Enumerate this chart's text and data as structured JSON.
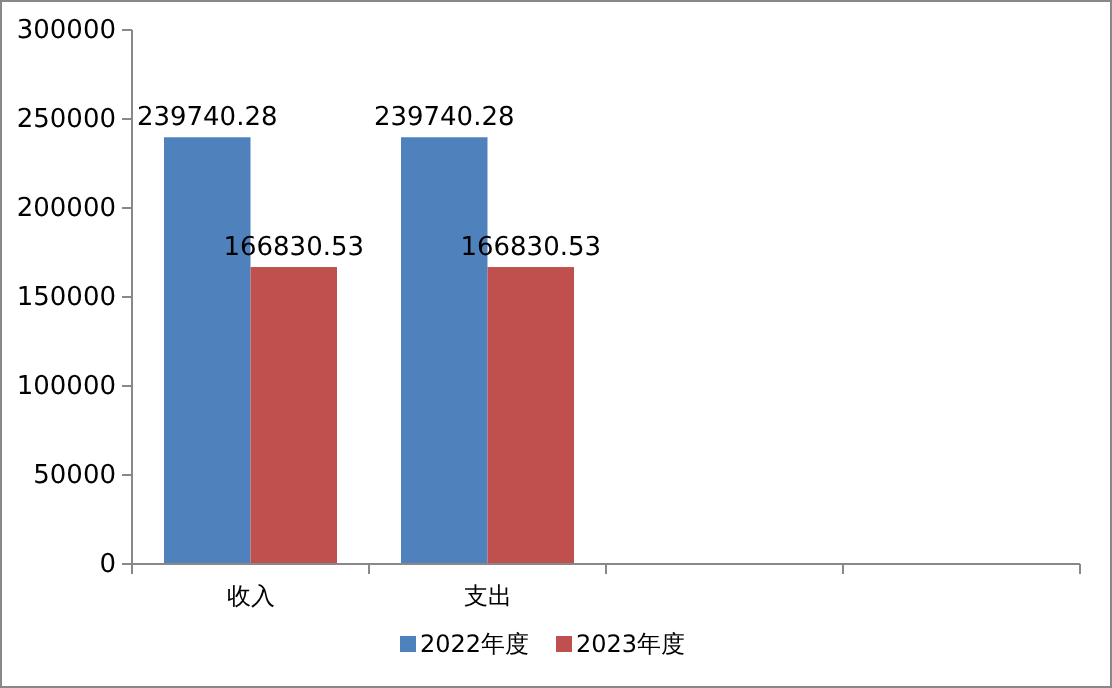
{
  "chart_data": {
    "type": "bar",
    "categories": [
      "收入",
      "支出",
      null,
      null
    ],
    "series": [
      {
        "name": "2022年度",
        "color": "#4f81bd",
        "values": [
          239740.28,
          239740.28,
          null,
          null
        ]
      },
      {
        "name": "2023年度",
        "color": "#c0504d",
        "values": [
          166830.53,
          166830.53,
          null,
          null
        ]
      }
    ],
    "ylim": [
      0,
      300000
    ],
    "yticks": [
      0,
      50000,
      100000,
      150000,
      200000,
      250000,
      300000
    ],
    "data_labels": true,
    "legend": "bottom"
  }
}
